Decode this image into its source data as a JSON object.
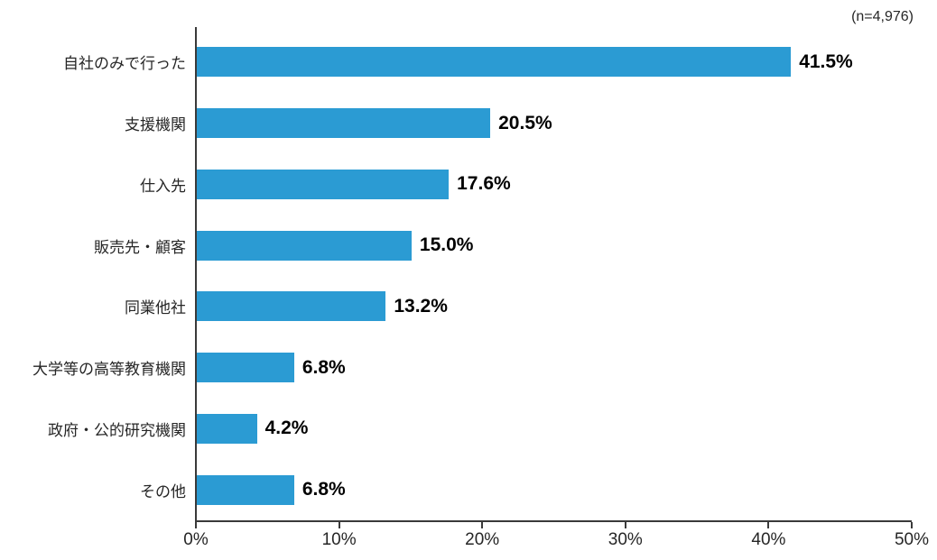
{
  "chart_data": {
    "type": "bar",
    "orientation": "horizontal",
    "title": "",
    "annotation": "(n=4,976)",
    "categories": [
      "自社のみで行った",
      "支援機関",
      "仕入先",
      "販売先・顧客",
      "同業他社",
      "大学等の高等教育機関",
      "政府・公的研究機関",
      "その他"
    ],
    "values": [
      41.5,
      20.5,
      17.6,
      15.0,
      13.2,
      6.8,
      4.2,
      6.8
    ],
    "value_labels": [
      "41.5%",
      "20.5%",
      "17.6%",
      "15.0%",
      "13.2%",
      "6.8%",
      "4.2%",
      "6.8%"
    ],
    "xlabel": "",
    "ylabel": "",
    "xlim": [
      0,
      50
    ],
    "x_ticks": [
      {
        "value": 0,
        "label": "0%"
      },
      {
        "value": 10,
        "label": "10%"
      },
      {
        "value": 20,
        "label": "20%"
      },
      {
        "value": 30,
        "label": "30%"
      },
      {
        "value": 40,
        "label": "40%"
      },
      {
        "value": 50,
        "label": "50%"
      }
    ],
    "grid": false,
    "legend": null,
    "colors": {
      "bar": "#2B9BD3",
      "axis": "#3A3A3A",
      "category_text": "#262626",
      "value_text": "#000000",
      "tick_text": "#262626",
      "background": "#FFFFFF"
    }
  }
}
